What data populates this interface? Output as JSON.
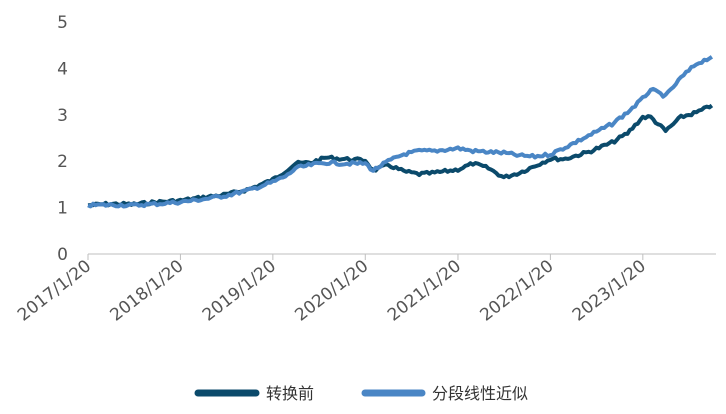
{
  "chart_data": {
    "type": "line",
    "title": "",
    "xlabel": "",
    "ylabel": "",
    "ylim": [
      0,
      5
    ],
    "yticks": [
      "0",
      "1",
      "2",
      "3",
      "4",
      "5"
    ],
    "x_ticks": [
      "2017/1/20",
      "2018/1/20",
      "2019/1/20",
      "2020/1/20",
      "2021/1/20",
      "2022/1/20",
      "2023/1/20"
    ],
    "grid": false,
    "legend_position": "bottom",
    "series": [
      {
        "name": "转换前",
        "color": "#0b4a6b",
        "points": [
          [
            "2017/1/20",
            1.05
          ],
          [
            "2017/4/20",
            1.08
          ],
          [
            "2017/7/20",
            1.07
          ],
          [
            "2017/10/20",
            1.12
          ],
          [
            "2018/1/20",
            1.15
          ],
          [
            "2018/4/20",
            1.22
          ],
          [
            "2018/7/20",
            1.28
          ],
          [
            "2018/10/20",
            1.4
          ],
          [
            "2019/1/20",
            1.6
          ],
          [
            "2019/3/20",
            1.82
          ],
          [
            "2019/4/20",
            1.95
          ],
          [
            "2019/6/20",
            1.97
          ],
          [
            "2019/8/20",
            2.08
          ],
          [
            "2019/10/20",
            2.05
          ],
          [
            "2020/1/20",
            2.02
          ],
          [
            "2020/2/20",
            1.8
          ],
          [
            "2020/4/20",
            1.92
          ],
          [
            "2020/6/20",
            1.78
          ],
          [
            "2020/8/20",
            1.72
          ],
          [
            "2020/10/20",
            1.75
          ],
          [
            "2021/1/20",
            1.82
          ],
          [
            "2021/3/20",
            1.95
          ],
          [
            "2021/5/20",
            1.85
          ],
          [
            "2021/7/20",
            1.65
          ],
          [
            "2021/9/20",
            1.75
          ],
          [
            "2021/11/20",
            1.9
          ],
          [
            "2022/1/20",
            2.05
          ],
          [
            "2022/3/20",
            2.05
          ],
          [
            "2022/6/20",
            2.2
          ],
          [
            "2022/9/20",
            2.4
          ],
          [
            "2022/11/20",
            2.6
          ],
          [
            "2023/1/20",
            2.95
          ],
          [
            "2023/2/20",
            2.95
          ],
          [
            "2023/4/20",
            2.65
          ],
          [
            "2023/6/20",
            2.95
          ],
          [
            "2023/8/20",
            3.05
          ],
          [
            "2023/10/20",
            3.2
          ]
        ]
      },
      {
        "name": "分段线性近似",
        "color": "#4a86c5",
        "points": [
          [
            "2017/1/20",
            1.05
          ],
          [
            "2017/4/20",
            1.06
          ],
          [
            "2017/7/20",
            1.05
          ],
          [
            "2017/10/20",
            1.08
          ],
          [
            "2018/1/20",
            1.12
          ],
          [
            "2018/4/20",
            1.18
          ],
          [
            "2018/7/20",
            1.26
          ],
          [
            "2018/10/20",
            1.38
          ],
          [
            "2019/1/20",
            1.55
          ],
          [
            "2019/3/20",
            1.7
          ],
          [
            "2019/4/20",
            1.85
          ],
          [
            "2019/6/20",
            1.92
          ],
          [
            "2019/8/20",
            1.97
          ],
          [
            "2019/10/20",
            1.95
          ],
          [
            "2020/1/20",
            1.95
          ],
          [
            "2020/2/20",
            1.8
          ],
          [
            "2020/4/20",
            2.0
          ],
          [
            "2020/6/20",
            2.15
          ],
          [
            "2020/8/20",
            2.22
          ],
          [
            "2020/10/20",
            2.22
          ],
          [
            "2021/1/20",
            2.28
          ],
          [
            "2021/3/20",
            2.22
          ],
          [
            "2021/5/20",
            2.2
          ],
          [
            "2021/7/20",
            2.18
          ],
          [
            "2021/9/20",
            2.12
          ],
          [
            "2021/11/20",
            2.1
          ],
          [
            "2022/1/20",
            2.15
          ],
          [
            "2022/3/20",
            2.3
          ],
          [
            "2022/6/20",
            2.55
          ],
          [
            "2022/9/20",
            2.8
          ],
          [
            "2022/11/20",
            3.05
          ],
          [
            "2023/1/20",
            3.35
          ],
          [
            "2023/2/20",
            3.55
          ],
          [
            "2023/4/20",
            3.4
          ],
          [
            "2023/6/20",
            3.8
          ],
          [
            "2023/8/20",
            4.1
          ],
          [
            "2023/10/20",
            4.25
          ]
        ]
      }
    ]
  }
}
